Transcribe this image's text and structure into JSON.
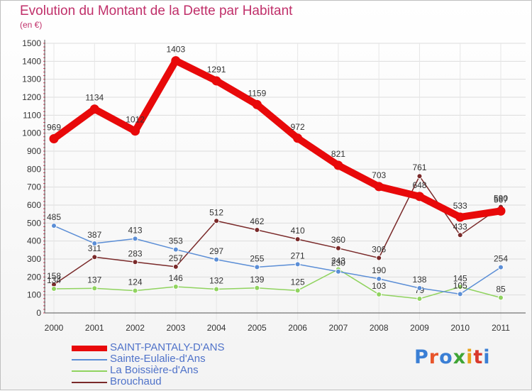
{
  "title": "Evolution du Montant de la Dette par Habitant",
  "subtitle": "(en €)",
  "logo": {
    "text": "Proxiti",
    "colors": [
      "#3a7fd5",
      "#e8552b",
      "#3a7fd5",
      "#3fa535",
      "#e8a21b",
      "#d9392c",
      "#3a7fd5"
    ]
  },
  "chart_data": {
    "type": "line",
    "x": [
      "2000",
      "2001",
      "2002",
      "2003",
      "2004",
      "2005",
      "2006",
      "2007",
      "2008",
      "2009",
      "2010",
      "2011"
    ],
    "ylim": [
      0,
      1500
    ],
    "yticks": [
      0,
      100,
      200,
      300,
      400,
      500,
      600,
      700,
      800,
      900,
      1000,
      1100,
      1200,
      1300,
      1400,
      1500
    ],
    "grid": true,
    "legend": "bottom-left",
    "series": [
      {
        "name": "SAINT-PANTALY-D'ANS",
        "color": "#e8090a",
        "values": [
          969,
          1134,
          1012,
          1403,
          1291,
          1159,
          972,
          821,
          703,
          648,
          533,
          567
        ]
      },
      {
        "name": "Sainte-Eulalie-d'Ans",
        "color": "#5b8ed6",
        "values": [
          485,
          387,
          413,
          353,
          297,
          255,
          271,
          230,
          190,
          138,
          105,
          254
        ]
      },
      {
        "name": "La Boissière-d'Ans",
        "color": "#90d35f",
        "values": [
          134,
          137,
          124,
          146,
          132,
          139,
          125,
          243,
          103,
          79,
          145,
          85
        ]
      },
      {
        "name": "Brouchaud",
        "color": "#7a2a2a",
        "values": [
          158,
          311,
          283,
          257,
          512,
          462,
          410,
          360,
          306,
          761,
          433,
          590
        ]
      }
    ]
  }
}
